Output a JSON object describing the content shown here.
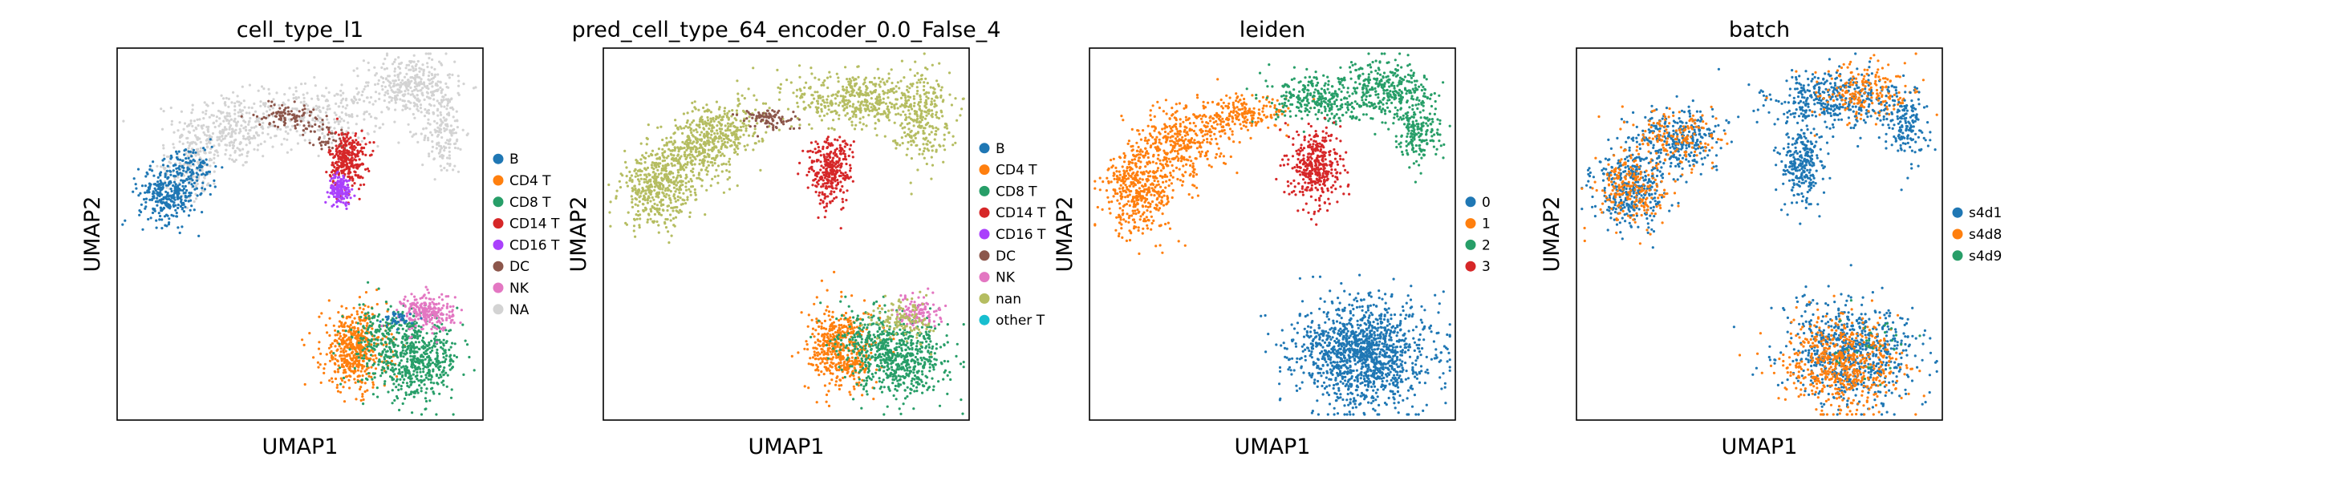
{
  "chart_data": [
    {
      "type": "scatter",
      "title": "cell_type_l1",
      "xlabel": "UMAP1",
      "ylabel": "UMAP2",
      "grid": false,
      "legend_placement": "right",
      "series": [
        {
          "name": "B",
          "color": "#1f77b4"
        },
        {
          "name": "CD4 T",
          "color": "#ff7f0e"
        },
        {
          "name": "CD8 T",
          "color": "#279e68"
        },
        {
          "name": "CD14 T",
          "color": "#d62728"
        },
        {
          "name": "CD16 T",
          "color": "#aa40fc"
        },
        {
          "name": "DC",
          "color": "#8c564b"
        },
        {
          "name": "NK",
          "color": "#e377c2"
        },
        {
          "name": "NA",
          "color": "#d3d3d3"
        }
      ],
      "clusters": [
        {
          "series": 7,
          "x": 0.3,
          "y": 0.78,
          "sx": 0.07,
          "sy": 0.05,
          "n": 320
        },
        {
          "series": 7,
          "x": 0.55,
          "y": 0.82,
          "sx": 0.09,
          "sy": 0.04,
          "n": 260
        },
        {
          "series": 7,
          "x": 0.8,
          "y": 0.9,
          "sx": 0.06,
          "sy": 0.04,
          "n": 320
        },
        {
          "series": 7,
          "x": 0.89,
          "y": 0.78,
          "sx": 0.03,
          "sy": 0.06,
          "n": 180
        },
        {
          "series": 7,
          "x": 0.2,
          "y": 0.68,
          "sx": 0.04,
          "sy": 0.04,
          "n": 160
        },
        {
          "series": 0,
          "x": 0.14,
          "y": 0.61,
          "sx": 0.04,
          "sy": 0.04,
          "n": 320
        },
        {
          "series": 0,
          "x": 0.21,
          "y": 0.68,
          "sx": 0.03,
          "sy": 0.03,
          "n": 90
        },
        {
          "series": 5,
          "x": 0.46,
          "y": 0.82,
          "sx": 0.04,
          "sy": 0.015,
          "n": 90
        },
        {
          "series": 5,
          "x": 0.57,
          "y": 0.76,
          "sx": 0.03,
          "sy": 0.02,
          "n": 50
        },
        {
          "series": 3,
          "x": 0.63,
          "y": 0.7,
          "sx": 0.025,
          "sy": 0.04,
          "n": 300
        },
        {
          "series": 4,
          "x": 0.61,
          "y": 0.62,
          "sx": 0.015,
          "sy": 0.02,
          "n": 150
        },
        {
          "series": 1,
          "x": 0.65,
          "y": 0.19,
          "sx": 0.045,
          "sy": 0.055,
          "n": 500
        },
        {
          "series": 2,
          "x": 0.82,
          "y": 0.16,
          "sx": 0.06,
          "sy": 0.05,
          "n": 500
        },
        {
          "series": 2,
          "x": 0.73,
          "y": 0.22,
          "sx": 0.05,
          "sy": 0.05,
          "n": 200
        },
        {
          "series": 6,
          "x": 0.85,
          "y": 0.29,
          "sx": 0.035,
          "sy": 0.025,
          "n": 240
        },
        {
          "series": 0,
          "x": 0.77,
          "y": 0.27,
          "sx": 0.02,
          "sy": 0.01,
          "n": 40
        }
      ]
    },
    {
      "type": "scatter",
      "title": "pred_cell_type_64_encoder_0.0_False_4",
      "xlabel": "UMAP1",
      "ylabel": "UMAP2",
      "grid": false,
      "legend_placement": "right",
      "series": [
        {
          "name": "B",
          "color": "#1f77b4"
        },
        {
          "name": "CD4 T",
          "color": "#ff7f0e"
        },
        {
          "name": "CD8 T",
          "color": "#279e68"
        },
        {
          "name": "CD14 T",
          "color": "#d62728"
        },
        {
          "name": "CD16 T",
          "color": "#aa40fc"
        },
        {
          "name": "DC",
          "color": "#8c564b"
        },
        {
          "name": "NK",
          "color": "#e377c2"
        },
        {
          "name": "nan",
          "color": "#b5bd61"
        },
        {
          "name": "other T",
          "color": "#17becf"
        }
      ],
      "clusters": [
        {
          "series": 7,
          "x": 0.15,
          "y": 0.62,
          "sx": 0.05,
          "sy": 0.05,
          "n": 450
        },
        {
          "series": 7,
          "x": 0.25,
          "y": 0.73,
          "sx": 0.05,
          "sy": 0.04,
          "n": 300
        },
        {
          "series": 7,
          "x": 0.33,
          "y": 0.78,
          "sx": 0.05,
          "sy": 0.04,
          "n": 250
        },
        {
          "series": 7,
          "x": 0.7,
          "y": 0.86,
          "sx": 0.09,
          "sy": 0.04,
          "n": 450
        },
        {
          "series": 7,
          "x": 0.87,
          "y": 0.82,
          "sx": 0.04,
          "sy": 0.06,
          "n": 250
        },
        {
          "series": 5,
          "x": 0.45,
          "y": 0.81,
          "sx": 0.04,
          "sy": 0.015,
          "n": 90
        },
        {
          "series": 3,
          "x": 0.62,
          "y": 0.67,
          "sx": 0.03,
          "sy": 0.045,
          "n": 320
        },
        {
          "series": 1,
          "x": 0.65,
          "y": 0.19,
          "sx": 0.045,
          "sy": 0.055,
          "n": 500
        },
        {
          "series": 2,
          "x": 0.82,
          "y": 0.16,
          "sx": 0.06,
          "sy": 0.05,
          "n": 500
        },
        {
          "series": 2,
          "x": 0.73,
          "y": 0.22,
          "sx": 0.05,
          "sy": 0.05,
          "n": 200
        },
        {
          "series": 6,
          "x": 0.86,
          "y": 0.29,
          "sx": 0.03,
          "sy": 0.02,
          "n": 120
        },
        {
          "series": 7,
          "x": 0.82,
          "y": 0.27,
          "sx": 0.04,
          "sy": 0.03,
          "n": 120
        }
      ]
    },
    {
      "type": "scatter",
      "title": "leiden",
      "xlabel": "UMAP1",
      "ylabel": "UMAP2",
      "grid": false,
      "legend_placement": "right",
      "series": [
        {
          "name": "0",
          "color": "#1f77b4"
        },
        {
          "name": "1",
          "color": "#ff7f0e"
        },
        {
          "name": "2",
          "color": "#279e68"
        },
        {
          "name": "3",
          "color": "#d62728"
        }
      ],
      "clusters": [
        {
          "series": 1,
          "x": 0.14,
          "y": 0.62,
          "sx": 0.05,
          "sy": 0.06,
          "n": 450
        },
        {
          "series": 1,
          "x": 0.25,
          "y": 0.75,
          "sx": 0.06,
          "sy": 0.05,
          "n": 350
        },
        {
          "series": 1,
          "x": 0.42,
          "y": 0.82,
          "sx": 0.06,
          "sy": 0.025,
          "n": 200
        },
        {
          "series": 2,
          "x": 0.62,
          "y": 0.86,
          "sx": 0.06,
          "sy": 0.03,
          "n": 250
        },
        {
          "series": 2,
          "x": 0.8,
          "y": 0.89,
          "sx": 0.06,
          "sy": 0.04,
          "n": 350
        },
        {
          "series": 2,
          "x": 0.9,
          "y": 0.78,
          "sx": 0.03,
          "sy": 0.05,
          "n": 200
        },
        {
          "series": 3,
          "x": 0.62,
          "y": 0.68,
          "sx": 0.035,
          "sy": 0.05,
          "n": 380
        },
        {
          "series": 0,
          "x": 0.75,
          "y": 0.18,
          "sx": 0.09,
          "sy": 0.07,
          "n": 1300
        }
      ]
    },
    {
      "type": "scatter",
      "title": "batch",
      "xlabel": "UMAP1",
      "ylabel": "UMAP2",
      "grid": false,
      "legend_placement": "right",
      "series": [
        {
          "name": "s4d1",
          "color": "#1f77b4"
        },
        {
          "name": "s4d8",
          "color": "#ff7f0e"
        },
        {
          "name": "s4d9",
          "color": "#279e68"
        }
      ],
      "clusters": [
        {
          "series": 0,
          "x": 0.15,
          "y": 0.62,
          "sx": 0.05,
          "sy": 0.05,
          "n": 350
        },
        {
          "series": 1,
          "x": 0.15,
          "y": 0.62,
          "sx": 0.05,
          "sy": 0.05,
          "n": 220
        },
        {
          "series": 0,
          "x": 0.28,
          "y": 0.76,
          "sx": 0.06,
          "sy": 0.04,
          "n": 300
        },
        {
          "series": 1,
          "x": 0.28,
          "y": 0.76,
          "sx": 0.06,
          "sy": 0.04,
          "n": 150
        },
        {
          "series": 0,
          "x": 0.7,
          "y": 0.86,
          "sx": 0.09,
          "sy": 0.04,
          "n": 400
        },
        {
          "series": 1,
          "x": 0.78,
          "y": 0.88,
          "sx": 0.07,
          "sy": 0.04,
          "n": 200
        },
        {
          "series": 0,
          "x": 0.9,
          "y": 0.79,
          "sx": 0.03,
          "sy": 0.05,
          "n": 160
        },
        {
          "series": 0,
          "x": 0.62,
          "y": 0.68,
          "sx": 0.03,
          "sy": 0.05,
          "n": 260
        },
        {
          "series": 0,
          "x": 0.75,
          "y": 0.18,
          "sx": 0.09,
          "sy": 0.07,
          "n": 700
        },
        {
          "series": 1,
          "x": 0.73,
          "y": 0.15,
          "sx": 0.08,
          "sy": 0.06,
          "n": 550
        },
        {
          "series": 2,
          "x": 0.8,
          "y": 0.2,
          "sx": 0.05,
          "sy": 0.04,
          "n": 30
        }
      ]
    }
  ]
}
